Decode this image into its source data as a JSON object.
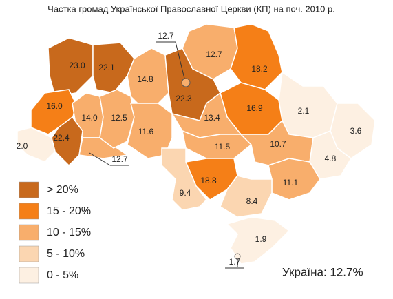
{
  "chart_data": {
    "type": "map",
    "title": "Частка громад Української Православної Церкви (КП) на поч. 2010 р.",
    "values": [
      23.0,
      22.1,
      16.0,
      14.0,
      22.4,
      2.0,
      12.7,
      12.5,
      14.8,
      11.6,
      22.3,
      12.7,
      12.7,
      18.2,
      16.9,
      13.4,
      11.5,
      2.1,
      3.6,
      4.8,
      10.7,
      11.1,
      18.8,
      9.4,
      8.4,
      1.9,
      1.7
    ],
    "value_labels": [
      "23.0",
      "22.1",
      "16.0",
      "14.0",
      "22.4",
      "2.0",
      "12.7",
      "12.5",
      "14.8",
      "11.6",
      "22.3",
      "12.7",
      "12.7",
      "18.2",
      "16.9",
      "13.4",
      "11.5",
      "2.1",
      "3.6",
      "4.8",
      "10.7",
      "11.1",
      "18.8",
      "9.4",
      "8.4",
      "1.9",
      "1.7"
    ],
    "legend": [
      {
        "label": "> 20%",
        "from": 20,
        "color": "#c8691c"
      },
      {
        "label": "15 - 20%",
        "from": 15,
        "to": 20,
        "color": "#f57f17"
      },
      {
        "label": "10 - 15%",
        "from": 10,
        "to": 15,
        "color": "#f8ae6c"
      },
      {
        "label": "5 - 10%",
        "from": 5,
        "to": 10,
        "color": "#fbd6b1"
      },
      {
        "label": "0 - 5%",
        "from": 0,
        "to": 5,
        "color": "#fdf0e2"
      }
    ],
    "summary": "Україна: 12.7%"
  }
}
